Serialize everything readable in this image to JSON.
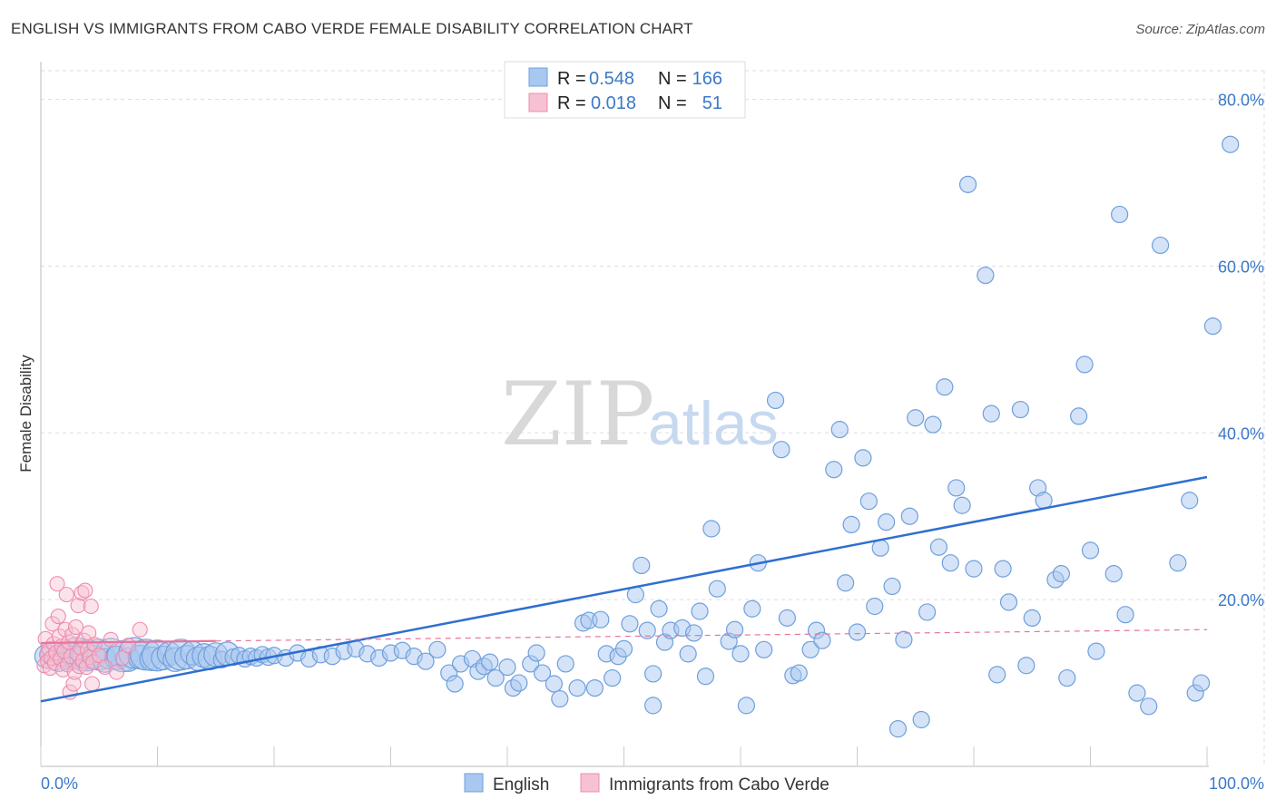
{
  "header": {
    "title": "ENGLISH VS IMMIGRANTS FROM CABO VERDE FEMALE DISABILITY CORRELATION CHART",
    "source": "Source: ZipAtlas.com"
  },
  "watermark": {
    "part1": "ZIP",
    "part2": "atlas"
  },
  "legend": {
    "row1": {
      "r_label": "R =",
      "r_value": "0.548",
      "n_label": "N =",
      "n_value": "166"
    },
    "row2": {
      "r_label": "R =",
      "r_value": "0.018",
      "n_label": "N =",
      "n_value": "51"
    }
  },
  "bottom_legend": {
    "english": "English",
    "cabo": "Immigrants from Cabo Verde"
  },
  "colors": {
    "english_fill": "#a9c8ef",
    "english_stroke": "#6f9fdc",
    "english_line": "#2e6fd0",
    "cabo_fill": "#f6c1d3",
    "cabo_stroke": "#ee8cae",
    "cabo_line": "#e8739a",
    "tick_text": "#3b78c9",
    "grid": "#dddddd"
  },
  "chart_data": {
    "type": "scatter",
    "title": "ENGLISH VS IMMIGRANTS FROM CABO VERDE FEMALE DISABILITY CORRELATION CHART",
    "xlabel": "",
    "ylabel": "Female Disability",
    "xlim": [
      0,
      100
    ],
    "ylim": [
      0,
      83
    ],
    "x_tick_labels": [
      "0.0%",
      "100.0%"
    ],
    "y_ticks": [
      20,
      40,
      60,
      80
    ],
    "y_tick_labels": [
      "20.0%",
      "40.0%",
      "60.0%",
      "80.0%"
    ],
    "grid": true,
    "legend_position": "top-center",
    "series": [
      {
        "name": "English",
        "r": 0.548,
        "n": 166,
        "trend": [
          [
            0,
            7.8
          ],
          [
            100,
            34.7
          ]
        ],
        "points": [
          [
            0.5,
            13.2,
            2
          ],
          [
            1,
            13.5,
            2
          ],
          [
            1.5,
            12.8,
            2
          ],
          [
            2,
            13.4,
            2
          ],
          [
            2.5,
            13.0,
            2
          ],
          [
            3,
            13.6,
            3
          ],
          [
            3.5,
            12.9,
            2
          ],
          [
            4,
            13.3,
            3
          ],
          [
            4.5,
            13.1,
            2
          ],
          [
            5,
            13.4,
            3
          ],
          [
            5.5,
            12.7,
            2
          ],
          [
            6,
            13.5,
            3
          ],
          [
            6.5,
            13.0,
            2
          ],
          [
            7,
            13.2,
            3
          ],
          [
            7.5,
            12.8,
            2
          ],
          [
            8,
            13.6,
            3
          ],
          [
            8.5,
            13.1,
            2
          ],
          [
            9,
            13.4,
            3
          ],
          [
            9.5,
            12.9,
            2
          ],
          [
            10,
            13.3,
            3
          ],
          [
            10.5,
            13.0,
            2
          ],
          [
            11,
            13.5,
            2
          ],
          [
            11.5,
            12.8,
            2
          ],
          [
            12,
            13.4,
            3
          ],
          [
            12.5,
            13.1,
            2
          ],
          [
            13,
            13.6,
            2
          ],
          [
            13.5,
            12.9,
            2
          ],
          [
            14,
            13.3,
            2
          ],
          [
            14.5,
            13.0,
            2
          ],
          [
            15,
            13.4,
            2
          ],
          [
            15.5,
            12.8,
            1
          ],
          [
            16,
            13.5,
            2
          ],
          [
            16.5,
            13.1,
            1
          ],
          [
            17,
            13.3,
            1
          ],
          [
            17.5,
            12.9,
            1
          ],
          [
            18,
            13.2,
            1
          ],
          [
            18.5,
            13.0,
            1
          ],
          [
            19,
            13.4,
            1
          ],
          [
            19.5,
            13.1,
            1
          ],
          [
            20,
            13.3,
            1
          ],
          [
            21,
            13.0,
            1
          ],
          [
            22,
            13.6,
            1
          ],
          [
            23,
            12.9,
            1
          ],
          [
            24,
            13.4,
            1
          ],
          [
            25,
            13.2,
            1
          ],
          [
            26,
            13.8,
            1
          ],
          [
            27,
            14.1,
            1
          ],
          [
            28,
            13.5,
            1
          ],
          [
            29,
            13.0,
            1
          ],
          [
            30,
            13.6,
            1
          ],
          [
            31,
            13.9,
            1
          ],
          [
            32,
            13.2,
            1
          ],
          [
            33,
            12.6,
            1
          ],
          [
            34,
            14.0,
            1
          ],
          [
            35,
            11.2,
            1
          ],
          [
            35.5,
            9.9,
            1
          ],
          [
            36,
            12.3,
            1
          ],
          [
            37,
            12.9,
            1
          ],
          [
            37.5,
            11.4,
            1
          ],
          [
            38,
            12.0,
            1
          ],
          [
            38.5,
            12.5,
            1
          ],
          [
            39,
            10.6,
            1
          ],
          [
            40,
            11.9,
            1
          ],
          [
            40.5,
            9.4,
            1
          ],
          [
            41,
            10.0,
            1
          ],
          [
            42,
            12.3,
            1
          ],
          [
            42.5,
            13.6,
            1
          ],
          [
            43,
            11.2,
            1
          ],
          [
            44,
            9.9,
            1
          ],
          [
            44.5,
            8.1,
            1
          ],
          [
            45,
            12.3,
            1
          ],
          [
            46,
            9.4,
            1
          ],
          [
            46.5,
            17.2,
            1
          ],
          [
            47,
            17.5,
            1
          ],
          [
            47.5,
            9.4,
            1
          ],
          [
            48,
            17.6,
            1
          ],
          [
            48.5,
            13.5,
            1
          ],
          [
            49,
            10.6,
            1
          ],
          [
            49.5,
            13.2,
            1
          ],
          [
            50,
            14.1,
            1
          ],
          [
            50.5,
            17.1,
            1
          ],
          [
            51,
            20.6,
            1
          ],
          [
            51.5,
            24.1,
            1
          ],
          [
            52,
            16.3,
            1
          ],
          [
            52.5,
            7.3,
            1
          ],
          [
            52.5,
            11.1,
            1
          ],
          [
            53,
            18.9,
            1
          ],
          [
            53.5,
            14.9,
            1
          ],
          [
            54,
            16.3,
            1
          ],
          [
            55,
            16.6,
            1
          ],
          [
            55.5,
            13.5,
            1
          ],
          [
            56,
            16.0,
            1
          ],
          [
            56.5,
            18.6,
            1
          ],
          [
            57,
            10.8,
            1
          ],
          [
            57.5,
            28.5,
            1
          ],
          [
            58,
            21.3,
            1
          ],
          [
            59,
            15.0,
            1
          ],
          [
            59.5,
            16.4,
            1
          ],
          [
            60,
            13.5,
            1
          ],
          [
            60.5,
            7.3,
            1
          ],
          [
            61,
            18.9,
            1
          ],
          [
            61.5,
            24.4,
            1
          ],
          [
            62,
            14.0,
            1
          ],
          [
            63,
            43.9,
            1
          ],
          [
            63.5,
            38.0,
            1
          ],
          [
            64,
            17.8,
            1
          ],
          [
            64.5,
            10.9,
            1
          ],
          [
            65,
            11.2,
            1
          ],
          [
            66,
            14.0,
            1
          ],
          [
            66.5,
            16.3,
            1
          ],
          [
            67,
            15.1,
            1
          ],
          [
            68,
            35.6,
            1
          ],
          [
            68.5,
            40.4,
            1
          ],
          [
            69,
            22.0,
            1
          ],
          [
            69.5,
            29.0,
            1
          ],
          [
            70,
            16.1,
            1
          ],
          [
            70.5,
            37.0,
            1
          ],
          [
            71,
            31.8,
            1
          ],
          [
            71.5,
            19.2,
            1
          ],
          [
            72,
            26.2,
            1
          ],
          [
            72.5,
            29.3,
            1
          ],
          [
            73,
            21.6,
            1
          ],
          [
            73.5,
            4.5,
            1
          ],
          [
            74,
            15.2,
            1
          ],
          [
            74.5,
            30.0,
            1
          ],
          [
            75,
            41.8,
            1
          ],
          [
            75.5,
            5.6,
            1
          ],
          [
            76,
            18.5,
            1
          ],
          [
            76.5,
            41.0,
            1
          ],
          [
            77,
            26.3,
            1
          ],
          [
            77.5,
            45.5,
            1
          ],
          [
            78,
            24.4,
            1
          ],
          [
            78.5,
            33.4,
            1
          ],
          [
            79,
            31.3,
            1
          ],
          [
            79.5,
            69.8,
            1
          ],
          [
            80,
            23.7,
            1
          ],
          [
            81,
            58.9,
            1
          ],
          [
            81.5,
            42.3,
            1
          ],
          [
            82,
            11.0,
            1
          ],
          [
            82.5,
            23.7,
            1
          ],
          [
            83,
            19.7,
            1
          ],
          [
            84,
            42.8,
            1
          ],
          [
            84.5,
            12.1,
            1
          ],
          [
            85,
            17.8,
            1
          ],
          [
            85.5,
            33.4,
            1
          ],
          [
            86,
            31.9,
            1
          ],
          [
            87,
            22.4,
            1
          ],
          [
            87.5,
            23.1,
            1
          ],
          [
            88,
            10.6,
            1
          ],
          [
            89,
            42.0,
            1
          ],
          [
            89.5,
            48.2,
            1
          ],
          [
            90,
            25.9,
            1
          ],
          [
            90.5,
            13.8,
            1
          ],
          [
            92,
            23.1,
            1
          ],
          [
            92.5,
            66.2,
            1
          ],
          [
            93,
            18.2,
            1
          ],
          [
            94,
            8.8,
            1
          ],
          [
            95,
            7.2,
            1
          ],
          [
            96,
            62.5,
            1
          ],
          [
            97.5,
            24.4,
            1
          ],
          [
            98.5,
            31.9,
            1
          ],
          [
            99,
            8.8,
            1
          ],
          [
            99.5,
            10.0,
            1
          ],
          [
            100.5,
            52.8,
            1
          ],
          [
            102,
            74.6,
            1
          ]
        ]
      },
      {
        "name": "Immigrants from Cabo Verde",
        "r": 0.018,
        "n": 51,
        "trend": [
          [
            0,
            14.8
          ],
          [
            100,
            16.4
          ]
        ],
        "points": [
          [
            0.3,
            12.1
          ],
          [
            0.4,
            15.3
          ],
          [
            0.5,
            13.4
          ],
          [
            0.6,
            12.6
          ],
          [
            0.7,
            14.1
          ],
          [
            0.8,
            11.8
          ],
          [
            0.9,
            13.0
          ],
          [
            1.0,
            17.1
          ],
          [
            1.1,
            14.7
          ],
          [
            1.2,
            12.4
          ],
          [
            1.3,
            13.6
          ],
          [
            1.4,
            21.9
          ],
          [
            1.5,
            18.0
          ],
          [
            1.6,
            15.6
          ],
          [
            1.7,
            12.9
          ],
          [
            1.8,
            14.4
          ],
          [
            1.9,
            11.6
          ],
          [
            2.0,
            13.8
          ],
          [
            2.1,
            16.4
          ],
          [
            2.2,
            20.6
          ],
          [
            2.3,
            12.2
          ],
          [
            2.4,
            14.9
          ],
          [
            2.5,
            8.9
          ],
          [
            2.6,
            13.2
          ],
          [
            2.7,
            15.8
          ],
          [
            2.8,
            9.9
          ],
          [
            2.9,
            11.3
          ],
          [
            3.0,
            16.7
          ],
          [
            3.1,
            13.5
          ],
          [
            3.2,
            19.3
          ],
          [
            3.3,
            12.0
          ],
          [
            3.4,
            14.2
          ],
          [
            3.5,
            20.8
          ],
          [
            3.6,
            12.7
          ],
          [
            3.7,
            15.1
          ],
          [
            3.8,
            21.1
          ],
          [
            3.9,
            11.9
          ],
          [
            4.0,
            14.0
          ],
          [
            4.1,
            16.0
          ],
          [
            4.2,
            13.1
          ],
          [
            4.3,
            19.2
          ],
          [
            4.4,
            9.9
          ],
          [
            4.5,
            12.5
          ],
          [
            4.6,
            14.6
          ],
          [
            5.0,
            13.3
          ],
          [
            5.5,
            11.9
          ],
          [
            6.0,
            15.2
          ],
          [
            6.5,
            11.3
          ],
          [
            7.0,
            13.0
          ],
          [
            7.5,
            14.5
          ],
          [
            8.5,
            16.4
          ]
        ]
      }
    ]
  }
}
